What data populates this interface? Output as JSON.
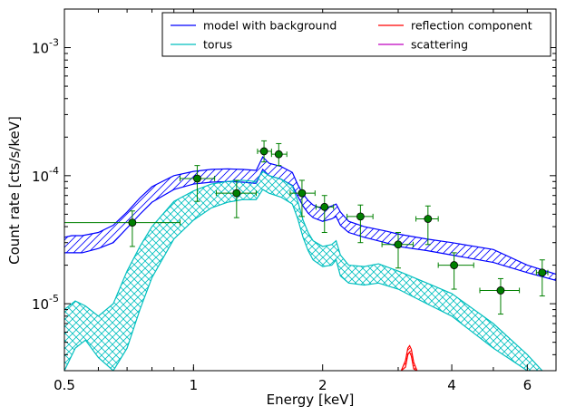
{
  "chart_data": {
    "type": "line",
    "xlabel": "Energy [keV]",
    "ylabel": "Count rate [cts/s/keV]",
    "xscale": "log",
    "yscale": "log",
    "xlim": [
      0.5,
      7.0
    ],
    "ylim": [
      3e-06,
      0.002
    ],
    "x_ticks": [
      {
        "value": 0.5,
        "label": "0.5"
      },
      {
        "value": 1,
        "label": "1"
      },
      {
        "value": 2,
        "label": "2"
      },
      {
        "value": 4,
        "label": "4"
      },
      {
        "value": 6,
        "label": "6"
      }
    ],
    "y_ticks": [
      {
        "value": 1e-05,
        "mantissa": "10",
        "exponent": "-5"
      },
      {
        "value": 0.0001,
        "mantissa": "10",
        "exponent": "-4"
      },
      {
        "value": 0.001,
        "mantissa": "10",
        "exponent": "-3"
      }
    ],
    "legend": {
      "position": "top-right",
      "ncol": 2,
      "entries": [
        {
          "label": "model with background",
          "color": "#0000ff"
        },
        {
          "label": "torus",
          "color": "#00bfbf"
        },
        {
          "label": "reflection component",
          "color": "#ff0000"
        },
        {
          "label": "scattering",
          "color": "#bf00bf"
        }
      ]
    },
    "series": [
      {
        "name": "model with background",
        "color": "#0000ff",
        "style": "band",
        "x": [
          0.5,
          0.52,
          0.55,
          0.6,
          0.65,
          0.7,
          0.75,
          0.8,
          0.9,
          1.0,
          1.1,
          1.2,
          1.3,
          1.4,
          1.45,
          1.5,
          1.6,
          1.7,
          1.75,
          1.8,
          1.85,
          1.9,
          2.0,
          2.1,
          2.15,
          2.2,
          2.3,
          2.5,
          2.8,
          3.0,
          3.5,
          4.0,
          5.0,
          6.0,
          7.0
        ],
        "upper": [
          3.3e-05,
          3.4e-05,
          3.4e-05,
          3.6e-05,
          4.1e-05,
          5.2e-05,
          6.7e-05,
          8.2e-05,
          0.0001,
          0.000108,
          0.000112,
          0.000113,
          0.000112,
          0.00011,
          0.00014,
          0.000125,
          0.000118,
          0.000106,
          8.5e-05,
          7.2e-05,
          6.4e-05,
          5.9e-05,
          5.5e-05,
          5.8e-05,
          6e-05,
          5.2e-05,
          4.4e-05,
          4e-05,
          3.7e-05,
          3.5e-05,
          3.2e-05,
          3e-05,
          2.65e-05,
          2e-05,
          1.7e-05
        ],
        "lower": [
          2.5e-05,
          2.5e-05,
          2.5e-05,
          2.7e-05,
          3e-05,
          3.9e-05,
          5e-05,
          6.2e-05,
          7.8e-05,
          8.6e-05,
          8.9e-05,
          9e-05,
          8.9e-05,
          8.7e-05,
          0.000112,
          0.0001,
          9.4e-05,
          8.4e-05,
          6.9e-05,
          5.8e-05,
          5.1e-05,
          4.7e-05,
          4.4e-05,
          4.6e-05,
          4.8e-05,
          4.1e-05,
          3.6e-05,
          3.3e-05,
          3e-05,
          2.8e-05,
          2.6e-05,
          2.4e-05,
          2.1e-05,
          1.75e-05,
          1.52e-05
        ]
      },
      {
        "name": "torus",
        "color": "#00bfbf",
        "style": "band",
        "x": [
          0.5,
          0.53,
          0.56,
          0.6,
          0.65,
          0.7,
          0.75,
          0.8,
          0.9,
          1.0,
          1.1,
          1.2,
          1.3,
          1.4,
          1.45,
          1.5,
          1.6,
          1.7,
          1.75,
          1.8,
          1.85,
          1.9,
          2.0,
          2.1,
          2.15,
          2.2,
          2.3,
          2.5,
          2.7,
          3.0,
          3.5,
          4.0,
          5.0,
          6.0,
          6.5
        ],
        "upper": [
          9e-06,
          1.05e-05,
          9.6e-06,
          8e-06,
          1e-05,
          1.8e-05,
          2.8e-05,
          4e-05,
          6.3e-05,
          7.6e-05,
          8.6e-05,
          9e-05,
          9.2e-05,
          9e-05,
          0.000108,
          0.0001,
          9.4e-05,
          8.3e-05,
          6.3e-05,
          4.5e-05,
          3.6e-05,
          3.1e-05,
          2.8e-05,
          2.9e-05,
          3.1e-05,
          2.4e-05,
          2e-05,
          1.95e-05,
          2.05e-05,
          1.8e-05,
          1.45e-05,
          1.2e-05,
          7e-06,
          4e-06,
          3e-06
        ],
        "lower": [
          3e-06,
          4.5e-06,
          5.2e-06,
          3.8e-06,
          3e-06,
          4.5e-06,
          9e-06,
          1.6e-05,
          3.2e-05,
          4.5e-05,
          5.6e-05,
          6.2e-05,
          6.5e-05,
          6.5e-05,
          7.8e-05,
          7.3e-05,
          6.8e-05,
          6e-05,
          4.6e-05,
          3.3e-05,
          2.6e-05,
          2.2e-05,
          1.95e-05,
          2e-05,
          2.2e-05,
          1.65e-05,
          1.45e-05,
          1.4e-05,
          1.45e-05,
          1.3e-05,
          1e-05,
          8e-06,
          4.5e-06,
          3e-06,
          3e-06
        ]
      },
      {
        "name": "reflection component",
        "color": "#ff0000",
        "style": "band",
        "x": [
          3.05,
          3.12,
          3.16,
          3.19,
          3.22,
          3.26,
          3.32
        ],
        "upper": [
          3e-06,
          3.6e-06,
          4.5e-06,
          4.7e-06,
          4.4e-06,
          3.5e-06,
          3e-06
        ],
        "lower": [
          3e-06,
          3.2e-06,
          4e-06,
          4.2e-06,
          3.9e-06,
          3.1e-06,
          3e-06
        ]
      },
      {
        "name": "scattering",
        "color": "#bf00bf",
        "style": "band",
        "x": [],
        "upper": [],
        "lower": []
      }
    ],
    "data_points": {
      "name": "data",
      "color": "#008000",
      "points": [
        {
          "x": 0.72,
          "xlo": 0.5,
          "xhi": 0.93,
          "y": 4.3e-05,
          "ylo": 2.8e-05,
          "yhi": 5.3e-05
        },
        {
          "x": 1.02,
          "xlo": 0.93,
          "xhi": 1.12,
          "y": 9.5e-05,
          "ylo": 6.3e-05,
          "yhi": 0.00012
        },
        {
          "x": 1.26,
          "xlo": 1.13,
          "xhi": 1.4,
          "y": 7.3e-05,
          "ylo": 4.7e-05,
          "yhi": 9.2e-05
        },
        {
          "x": 1.46,
          "xlo": 1.41,
          "xhi": 1.52,
          "y": 0.000155,
          "ylo": 0.000128,
          "yhi": 0.000187
        },
        {
          "x": 1.58,
          "xlo": 1.52,
          "xhi": 1.65,
          "y": 0.000147,
          "ylo": 0.00012,
          "yhi": 0.000178
        },
        {
          "x": 1.79,
          "xlo": 1.68,
          "xhi": 1.92,
          "y": 7.3e-05,
          "ylo": 4.8e-05,
          "yhi": 9.2e-05
        },
        {
          "x": 2.02,
          "xlo": 1.93,
          "xhi": 2.12,
          "y": 5.7e-05,
          "ylo": 3.6e-05,
          "yhi": 7e-05
        },
        {
          "x": 2.45,
          "xlo": 2.28,
          "xhi": 2.62,
          "y": 4.8e-05,
          "ylo": 3e-05,
          "yhi": 5.9e-05
        },
        {
          "x": 3.0,
          "xlo": 2.75,
          "xhi": 3.25,
          "y": 2.9e-05,
          "ylo": 1.9e-05,
          "yhi": 3.6e-05
        },
        {
          "x": 3.52,
          "xlo": 3.3,
          "xhi": 3.72,
          "y": 4.6e-05,
          "ylo": 2.9e-05,
          "yhi": 5.8e-05
        },
        {
          "x": 4.05,
          "xlo": 3.72,
          "xhi": 4.5,
          "y": 2e-05,
          "ylo": 1.3e-05,
          "yhi": 2.5e-05
        },
        {
          "x": 5.2,
          "xlo": 4.65,
          "xhi": 5.75,
          "y": 1.27e-05,
          "ylo": 8.3e-06,
          "yhi": 1.57e-05
        },
        {
          "x": 6.5,
          "xlo": 6.3,
          "xhi": 6.7,
          "y": 1.75e-05,
          "ylo": 1.15e-05,
          "yhi": 2.2e-05
        }
      ]
    }
  }
}
